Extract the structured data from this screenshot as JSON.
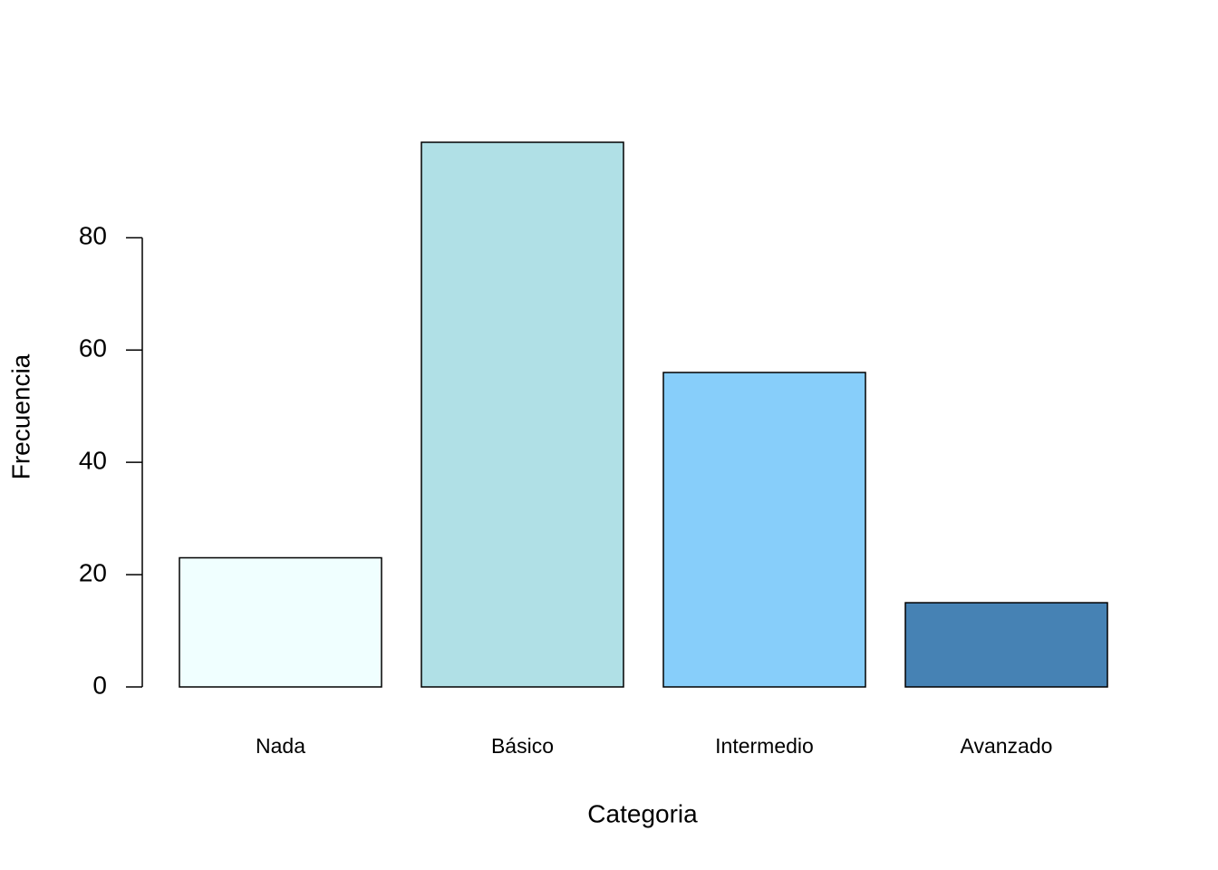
{
  "chart_data": {
    "type": "bar",
    "x_label": "Categoria",
    "y_label": "Frecuencia",
    "categories": [
      "Nada",
      "Básico",
      "Intermedio",
      "Avanzado"
    ],
    "values": [
      23,
      97,
      56,
      15
    ],
    "colors": [
      "#f0ffff",
      "#b0e0e6",
      "#87cefa",
      "#4682b4"
    ],
    "ylim": [
      0,
      97
    ],
    "yticks": [
      0,
      20,
      40,
      60,
      80
    ],
    "grid": false
  }
}
